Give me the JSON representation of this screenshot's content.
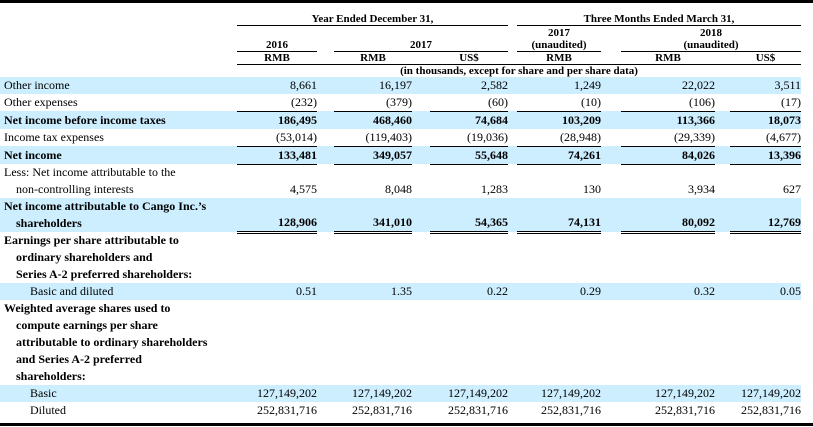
{
  "unit_note": "(in thousands, except for share and per share data)",
  "colors": {
    "highlight": "#cceeff",
    "border": "#000000"
  },
  "header": {
    "groups": [
      {
        "label": "Year Ended December 31,"
      },
      {
        "label": "Three Months Ended March 31,"
      }
    ],
    "periods": [
      {
        "label": "2016",
        "note": ""
      },
      {
        "label": "2017",
        "note": ""
      },
      {
        "label": "2017",
        "note": "(unaudited)"
      },
      {
        "label": "2018",
        "note": "(unaudited)"
      }
    ],
    "currencies": [
      "RMB",
      "RMB",
      "US$",
      "RMB",
      "RMB",
      "US$"
    ]
  },
  "rows": [
    {
      "label_lines": [
        {
          "text": "Other income",
          "indent": 0
        }
      ],
      "values": [
        "8,661",
        "16,197",
        "2,582",
        "1,249",
        "22,022",
        "3,511"
      ],
      "highlight": true,
      "bold": false,
      "underline": "none"
    },
    {
      "label_lines": [
        {
          "text": "Other expenses",
          "indent": 0
        }
      ],
      "values": [
        "(232)",
        "(379)",
        "(60)",
        "(10)",
        "(106)",
        "(17)"
      ],
      "highlight": false,
      "bold": false,
      "underline": "single"
    },
    {
      "label_lines": [
        {
          "text": "Net income before income taxes",
          "indent": 0
        }
      ],
      "values": [
        "186,495",
        "468,460",
        "74,684",
        "103,209",
        "113,366",
        "18,073"
      ],
      "highlight": true,
      "bold": true,
      "underline": "none"
    },
    {
      "label_lines": [
        {
          "text": "Income tax expenses",
          "indent": 0
        }
      ],
      "values": [
        "(53,014)",
        "(119,403)",
        "(19,036)",
        "(28,948)",
        "(29,339)",
        "(4,677)"
      ],
      "highlight": false,
      "bold": false,
      "underline": "single"
    },
    {
      "label_lines": [
        {
          "text": "Net income",
          "indent": 0
        }
      ],
      "values": [
        "133,481",
        "349,057",
        "55,648",
        "74,261",
        "84,026",
        "13,396"
      ],
      "highlight": true,
      "bold": true,
      "underline": "single"
    },
    {
      "label_lines": [
        {
          "text": "Less: Net income attributable to the",
          "indent": 0
        },
        {
          "text": "non-controlling interests",
          "indent": 1
        }
      ],
      "values": [
        "4,575",
        "8,048",
        "1,283",
        "130",
        "3,934",
        "627"
      ],
      "highlight": false,
      "bold": false,
      "underline": "none"
    },
    {
      "label_lines": [
        {
          "text": "Net income attributable to Cango Inc.’s",
          "indent": 0
        },
        {
          "text": "shareholders",
          "indent": 1
        }
      ],
      "values": [
        "128,906",
        "341,010",
        "54,365",
        "74,131",
        "80,092",
        "12,769"
      ],
      "highlight": true,
      "bold": true,
      "underline": "double"
    },
    {
      "label_lines": [
        {
          "text": "Earnings per share attributable to",
          "indent": 0
        },
        {
          "text": "ordinary shareholders and",
          "indent": 1
        },
        {
          "text": "Series A-2 preferred shareholders:",
          "indent": 1
        }
      ],
      "values": [],
      "highlight": false,
      "bold": true,
      "underline": "none"
    },
    {
      "label_lines": [
        {
          "text": "Basic and diluted",
          "indent": 2
        }
      ],
      "values": [
        "0.51",
        "1.35",
        "0.22",
        "0.29",
        "0.32",
        "0.05"
      ],
      "highlight": true,
      "bold": false,
      "underline": "none"
    },
    {
      "label_lines": [
        {
          "text": "Weighted average shares used to",
          "indent": 0
        },
        {
          "text": "compute earnings per share",
          "indent": 1
        },
        {
          "text": "attributable to ordinary shareholders",
          "indent": 1
        },
        {
          "text": "and Series A-2 preferred",
          "indent": 1
        },
        {
          "text": "shareholders:",
          "indent": 1
        }
      ],
      "values": [],
      "highlight": false,
      "bold": true,
      "underline": "none"
    },
    {
      "label_lines": [
        {
          "text": "Basic",
          "indent": 2
        }
      ],
      "values": [
        "127,149,202",
        "127,149,202",
        "127,149,202",
        "127,149,202",
        "127,149,202",
        "127,149,202"
      ],
      "highlight": true,
      "bold": false,
      "underline": "none"
    },
    {
      "label_lines": [
        {
          "text": "Diluted",
          "indent": 2
        }
      ],
      "values": [
        "252,831,716",
        "252,831,716",
        "252,831,716",
        "252,831,716",
        "252,831,716",
        "252,831,716"
      ],
      "highlight": false,
      "bold": false,
      "underline": "none"
    }
  ]
}
